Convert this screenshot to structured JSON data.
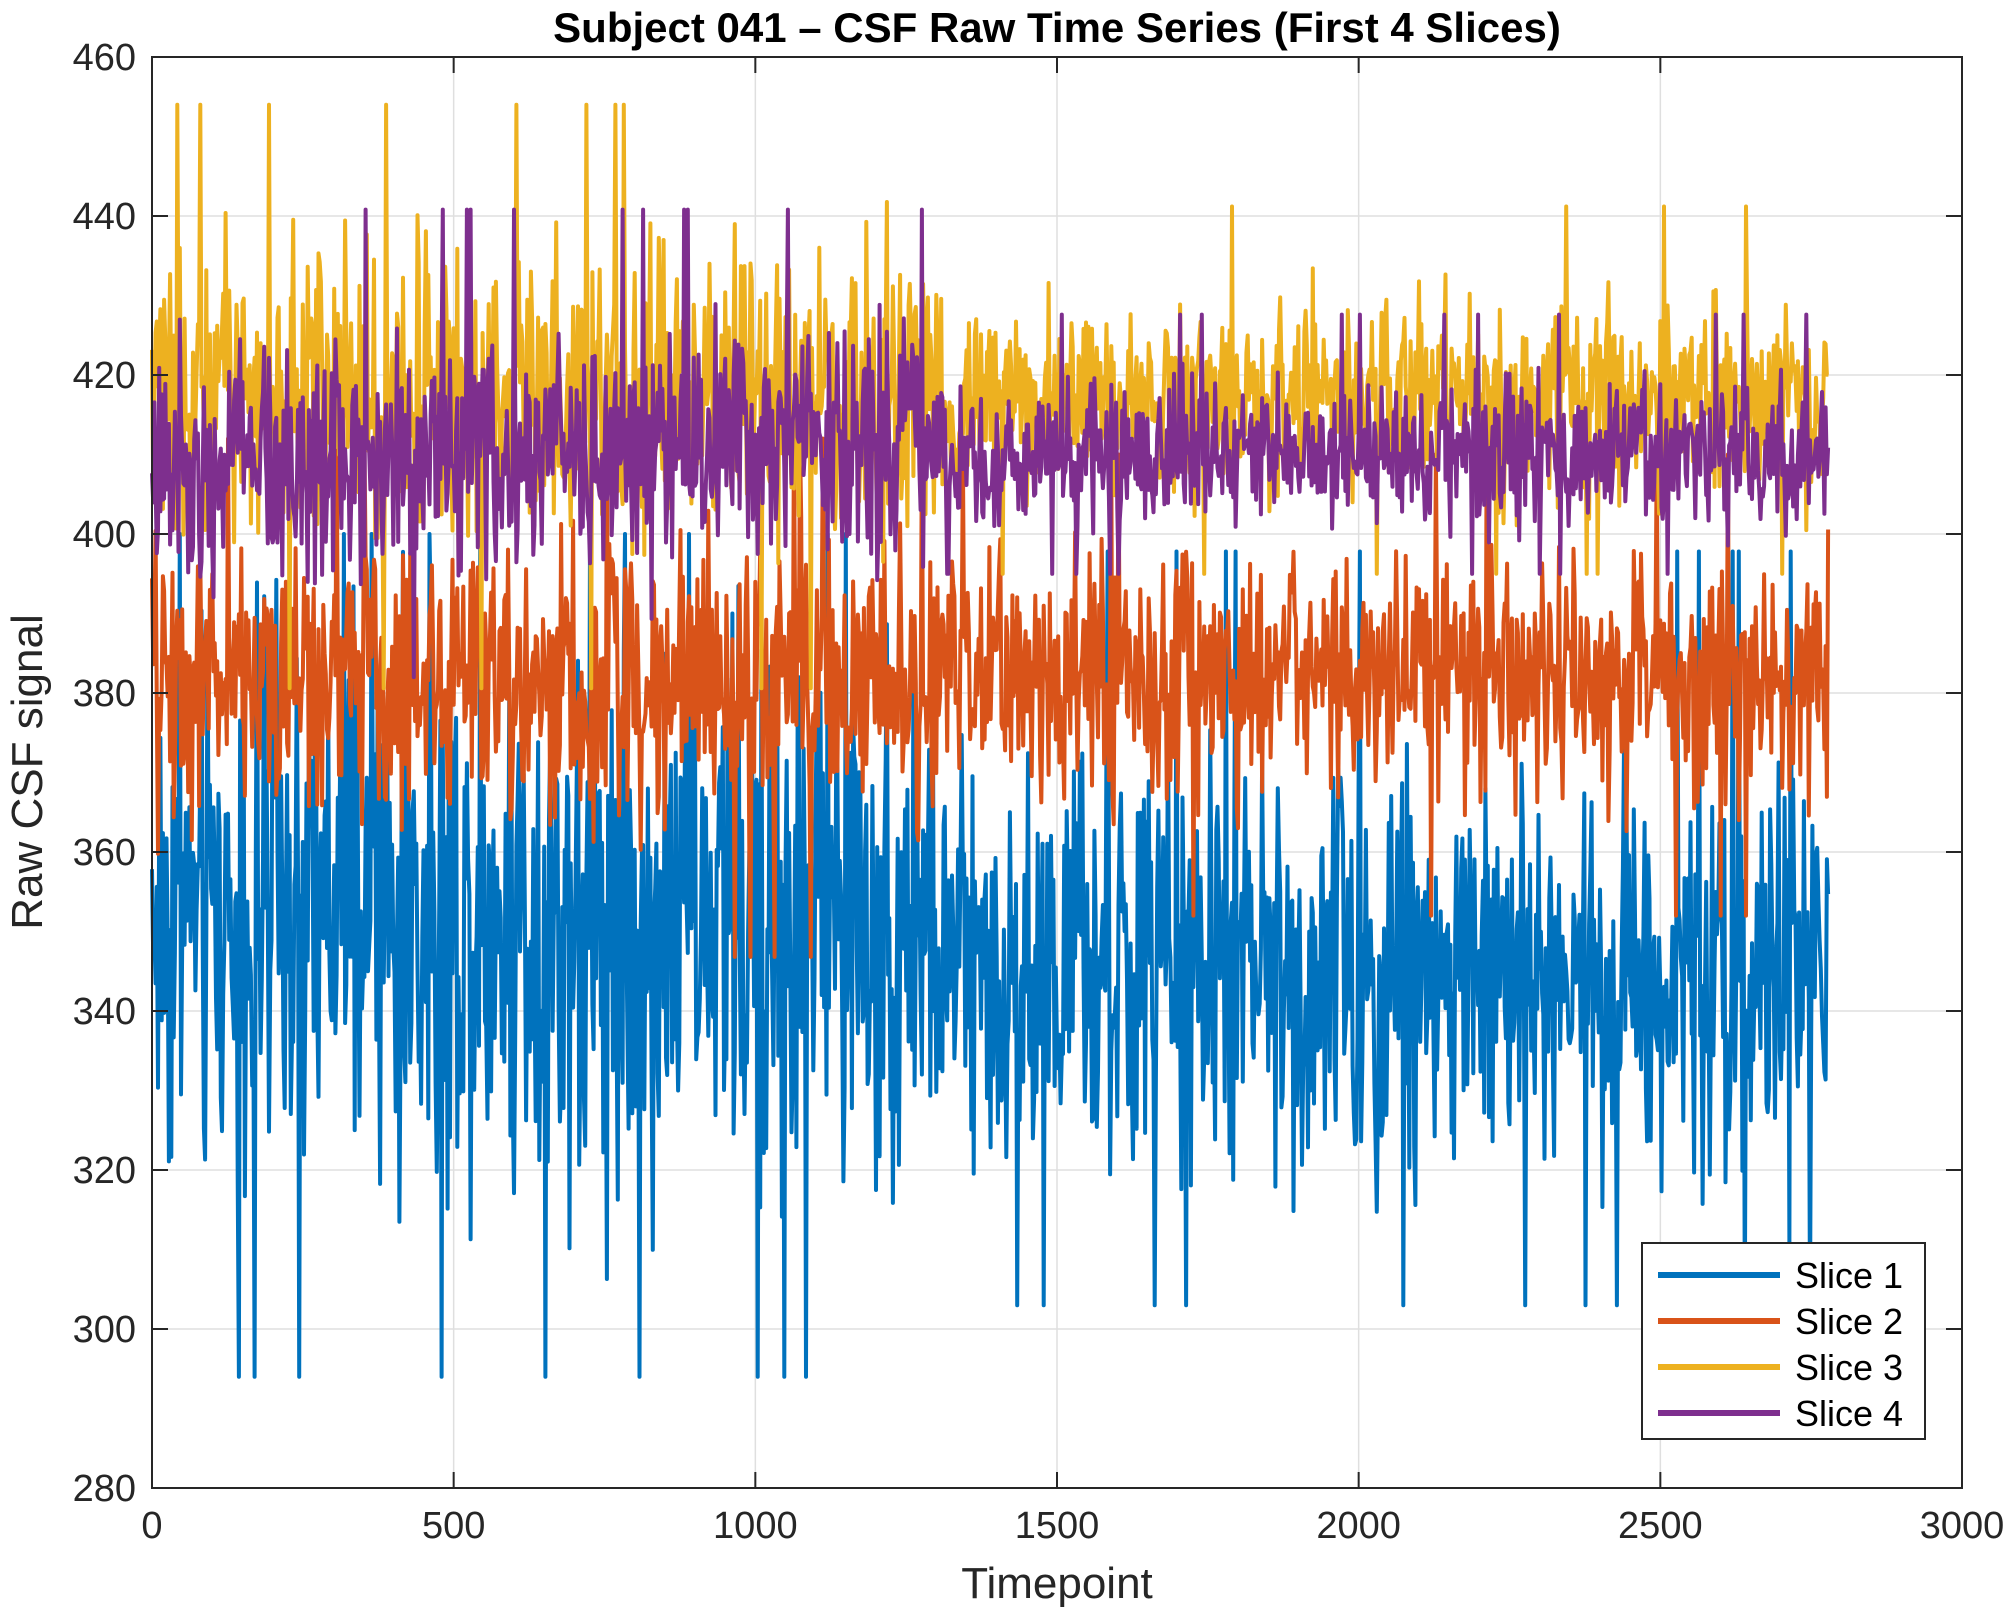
{
  "chart_data": {
    "type": "line",
    "title": "Subject 041 – CSF Raw Time Series (First 4 Slices)",
    "xlabel": "Timepoint",
    "ylabel": "Raw CSF signal",
    "xlim": [
      0,
      3000
    ],
    "ylim": [
      280,
      460
    ],
    "xticks": [
      0,
      500,
      1000,
      1500,
      2000,
      2500,
      3000
    ],
    "yticks": [
      280,
      300,
      320,
      340,
      360,
      380,
      400,
      420,
      440,
      460
    ],
    "grid": true,
    "legend_position": "bottom-right",
    "n_timepoints": 2780,
    "note_values": "Dense noisy signals; per-series values are summarized by segment mean, amplitude (typical half-range) and observed extremes",
    "series": [
      {
        "name": "Slice 1",
        "color": "#0072BD",
        "segments": [
          {
            "x_start": 0,
            "x_end": 1300,
            "mean": 352,
            "amplitude": 32,
            "min": 294,
            "max": 400
          },
          {
            "x_start": 1300,
            "x_end": 2780,
            "mean": 345,
            "amplitude": 24,
            "min": 303,
            "max": 398
          }
        ]
      },
      {
        "name": "Slice 2",
        "color": "#D95319",
        "segments": [
          {
            "x_start": 0,
            "x_end": 1300,
            "mean": 382,
            "amplitude": 16,
            "min": 330,
            "max": 412
          },
          {
            "x_start": 1300,
            "x_end": 2780,
            "mean": 382,
            "amplitude": 14,
            "min": 352,
            "max": 410
          }
        ]
      },
      {
        "name": "Slice 3",
        "color": "#EDB120",
        "segments": [
          {
            "x_start": 0,
            "x_end": 1300,
            "mean": 418,
            "amplitude": 17,
            "min": 378,
            "max": 454
          },
          {
            "x_start": 1300,
            "x_end": 2780,
            "mean": 417,
            "amplitude": 11,
            "min": 395,
            "max": 451
          }
        ]
      },
      {
        "name": "Slice 4",
        "color": "#7E2F8E",
        "segments": [
          {
            "x_start": 0,
            "x_end": 1300,
            "mean": 410,
            "amplitude": 14,
            "min": 382,
            "max": 446
          },
          {
            "x_start": 1300,
            "x_end": 2780,
            "mean": 410,
            "amplitude": 8,
            "min": 395,
            "max": 432
          }
        ]
      }
    ]
  }
}
